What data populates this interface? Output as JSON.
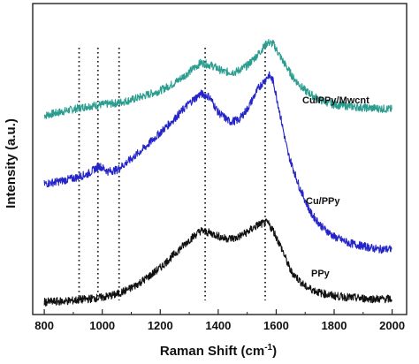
{
  "chart_data": {
    "type": "line",
    "xlabel": "Raman Shift (cm",
    "xlabel_superscript": "-1",
    "xlabel_suffix": ")",
    "ylabel": "Intensity (a.u.)",
    "xlim": [
      760,
      2050
    ],
    "ylim": [
      0,
      100
    ],
    "x_ticks": [
      800,
      1000,
      1200,
      1400,
      1600,
      1800,
      2000
    ],
    "y_ticks_labeled": false,
    "grid": false,
    "legend": "none (series labeled inline on plot)",
    "reference_lines_x": [
      920,
      985,
      1058,
      1355,
      1562
    ],
    "series": [
      {
        "name": "Cu/PPy/Mwcnt",
        "color": "#2a9d8f",
        "x": [
          800,
          850,
          900,
          950,
          1000,
          1050,
          1100,
          1150,
          1200,
          1250,
          1300,
          1340,
          1380,
          1420,
          1460,
          1500,
          1540,
          1570,
          1590,
          1620,
          1660,
          1700,
          1750,
          1800,
          1850,
          1900,
          1950,
          2000
        ],
        "y": [
          64,
          65,
          66,
          67,
          67.5,
          68,
          69,
          70.5,
          72,
          74.5,
          78,
          81,
          80,
          78,
          78,
          80,
          84,
          87.5,
          87,
          82,
          76,
          72,
          69,
          67.5,
          67,
          66.5,
          66.3,
          66
        ]
      },
      {
        "name": "Cu/PPy",
        "color": "#2424c8",
        "x": [
          800,
          850,
          900,
          950,
          990,
          1020,
          1050,
          1100,
          1150,
          1200,
          1250,
          1300,
          1340,
          1370,
          1400,
          1440,
          1470,
          1500,
          1540,
          1575,
          1590,
          1610,
          1640,
          1680,
          1720,
          1760,
          1800,
          1850,
          1900,
          1950,
          2000
        ],
        "y": [
          42,
          42.8,
          43.8,
          45.2,
          47.8,
          46,
          46.5,
          50,
          54,
          58.5,
          63,
          68,
          71,
          70,
          65,
          62,
          62.5,
          66,
          73,
          77,
          75,
          66,
          52,
          41,
          32.5,
          28,
          25,
          23,
          22,
          21,
          21
        ]
      },
      {
        "name": "PPy",
        "color": "#111111",
        "x": [
          800,
          850,
          900,
          950,
          1000,
          1050,
          1100,
          1150,
          1200,
          1250,
          1300,
          1340,
          1380,
          1420,
          1460,
          1500,
          1540,
          1570,
          1590,
          1620,
          1650,
          1700,
          1750,
          1800,
          1850,
          1900,
          1950,
          2000
        ],
        "y": [
          4,
          4.2,
          4.5,
          5,
          5.5,
          6.5,
          8.5,
          11.5,
          15,
          19.5,
          24,
          27,
          26,
          24.5,
          24.5,
          26.5,
          29,
          29.5,
          27,
          21,
          14,
          9,
          7,
          6,
          5.5,
          5.2,
          5,
          5
        ]
      }
    ]
  }
}
